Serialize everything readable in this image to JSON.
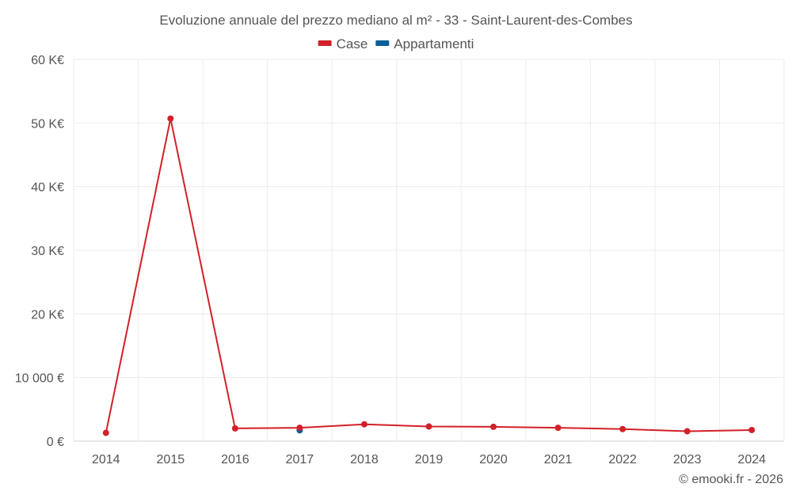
{
  "chart_data": {
    "type": "line",
    "title": "Evoluzione annuale del prezzo mediano al m² - 33 - Saint-Laurent-des-Combes",
    "categories": [
      "2014",
      "2015",
      "2016",
      "2017",
      "2018",
      "2019",
      "2020",
      "2021",
      "2022",
      "2023",
      "2024"
    ],
    "series": [
      {
        "name": "Case",
        "color": "#d32028",
        "values": [
          1300,
          50700,
          2000,
          2100,
          2650,
          2300,
          2250,
          2100,
          1900,
          1550,
          1750
        ]
      },
      {
        "name": "Appartamenti",
        "color": "#0a5d99",
        "values": [
          null,
          null,
          null,
          1700,
          null,
          null,
          null,
          null,
          null,
          null,
          null
        ]
      }
    ],
    "ylim": [
      0,
      60000
    ],
    "yticks": [
      0,
      10000,
      20000,
      30000,
      40000,
      50000,
      60000
    ],
    "ytick_labels": [
      "0 €",
      "10 000 €",
      "20 K€",
      "30 K€",
      "40 K€",
      "50 K€",
      "60 K€"
    ],
    "legend_position": "top-center",
    "grid": true
  },
  "credit": "© emooki.fr - 2026"
}
